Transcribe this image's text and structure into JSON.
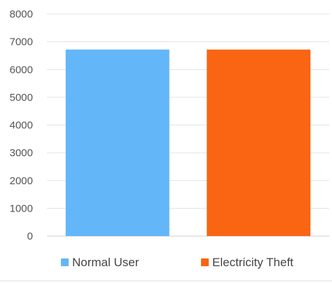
{
  "chart_data": {
    "type": "bar",
    "title": "",
    "xlabel": "",
    "ylabel": "",
    "categories": [
      "Normal User",
      "Electricity Theft"
    ],
    "values": [
      6720,
      6720
    ],
    "colors": [
      "#63b6f8",
      "#f96513"
    ],
    "ylim": [
      0,
      8000
    ],
    "yticks": [
      "0",
      "1000",
      "2000",
      "3000",
      "4000",
      "5000",
      "6000",
      "7000",
      "8000"
    ],
    "grid": true,
    "legend": {
      "placement": "bottom",
      "entries": [
        {
          "label": "Normal  User",
          "color": "#63b6f8"
        },
        {
          "label": "Electricity Theft",
          "color": "#f96513"
        }
      ]
    }
  }
}
